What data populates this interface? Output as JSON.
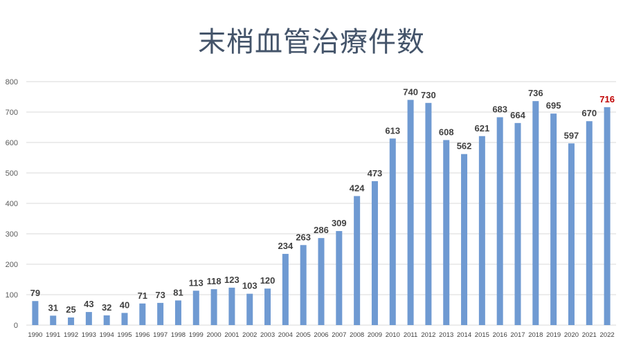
{
  "chart_data": {
    "type": "bar",
    "title": "末梢血管治療件数",
    "categories": [
      "1990",
      "1991",
      "1992",
      "1993",
      "1994",
      "1995",
      "1996",
      "1997",
      "1998",
      "1999",
      "2000",
      "2001",
      "2002",
      "2003",
      "2004",
      "2005",
      "2006",
      "2007",
      "2008",
      "2009",
      "2010",
      "2011",
      "2012",
      "2013",
      "2014",
      "2015",
      "2016",
      "2017",
      "2018",
      "2019",
      "2020",
      "2021",
      "2022"
    ],
    "values": [
      79,
      31,
      25,
      43,
      32,
      40,
      71,
      73,
      81,
      113,
      118,
      123,
      103,
      120,
      234,
      263,
      286,
      309,
      424,
      473,
      613,
      740,
      730,
      608,
      562,
      621,
      683,
      664,
      736,
      695,
      597,
      670,
      716
    ],
    "ylim": [
      0,
      800
    ],
    "yticks": [
      0,
      100,
      200,
      300,
      400,
      500,
      600,
      700,
      800
    ],
    "grid": true,
    "bar_color": "#6F9AD2",
    "label_color": "#404040",
    "highlight_label_color": "#C00000",
    "highlight_category": "2022"
  }
}
